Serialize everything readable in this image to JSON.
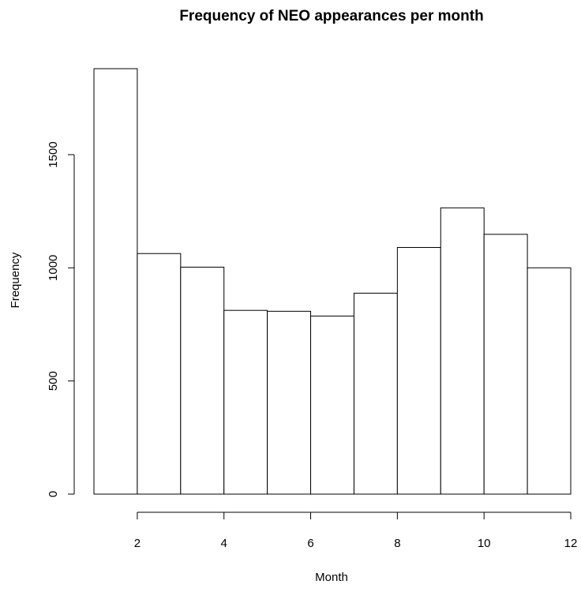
{
  "chart_data": {
    "type": "bar",
    "title": "Frequency of NEO appearances per month",
    "xlabel": "Month",
    "ylabel": "Frequency",
    "bins": [
      {
        "start": 1,
        "end": 2,
        "value": 1880
      },
      {
        "start": 2,
        "end": 3,
        "value": 1063
      },
      {
        "start": 3,
        "end": 4,
        "value": 1003
      },
      {
        "start": 4,
        "end": 5,
        "value": 812
      },
      {
        "start": 5,
        "end": 6,
        "value": 808
      },
      {
        "start": 6,
        "end": 7,
        "value": 787
      },
      {
        "start": 7,
        "end": 8,
        "value": 888
      },
      {
        "start": 8,
        "end": 9,
        "value": 1090
      },
      {
        "start": 9,
        "end": 10,
        "value": 1265
      },
      {
        "start": 10,
        "end": 11,
        "value": 1148
      },
      {
        "start": 11,
        "end": 12,
        "value": 1000
      }
    ],
    "xticks": [
      2,
      4,
      6,
      8,
      10,
      12
    ],
    "yticks": [
      0,
      500,
      1000,
      1500
    ],
    "xlim": [
      1,
      12
    ],
    "ylim": [
      0,
      1880
    ],
    "grid": false,
    "legend": "none",
    "colors": {
      "bar_fill": "#ffffff",
      "bar_stroke": "#000000"
    }
  }
}
